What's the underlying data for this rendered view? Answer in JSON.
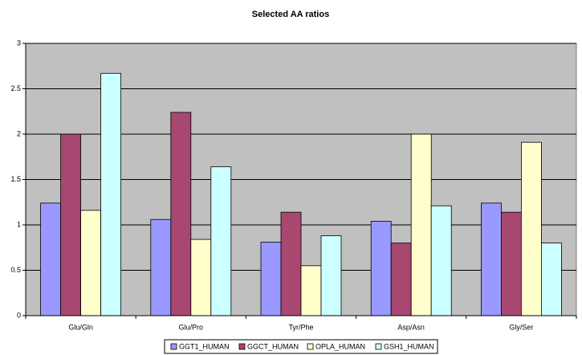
{
  "chart_data": {
    "type": "bar",
    "title": "Selected AA ratios",
    "categories": [
      "Glu/Gln",
      "Glu/Pro",
      "Tyr/Phe",
      "Asp/Asn",
      "Gly/Ser"
    ],
    "series": [
      {
        "name": "GGT1_HUMAN",
        "color": "#9999ff",
        "values": [
          1.24,
          1.06,
          0.81,
          1.04,
          1.24
        ]
      },
      {
        "name": "GGCT_HUMAN",
        "color": "#a8476f",
        "values": [
          2.0,
          2.24,
          1.14,
          0.8,
          1.14
        ]
      },
      {
        "name": "OPLA_HUMAN",
        "color": "#ffffcc",
        "values": [
          1.16,
          0.84,
          0.55,
          2.0,
          1.91
        ]
      },
      {
        "name": "GSH1_HUMAN",
        "color": "#ccffff",
        "values": [
          2.67,
          1.64,
          0.88,
          1.21,
          0.8
        ]
      }
    ],
    "ylim": [
      0,
      3
    ],
    "yticks": [
      0,
      0.5,
      1,
      1.5,
      2,
      2.5,
      3
    ],
    "grid": true,
    "legend": "bottom"
  }
}
